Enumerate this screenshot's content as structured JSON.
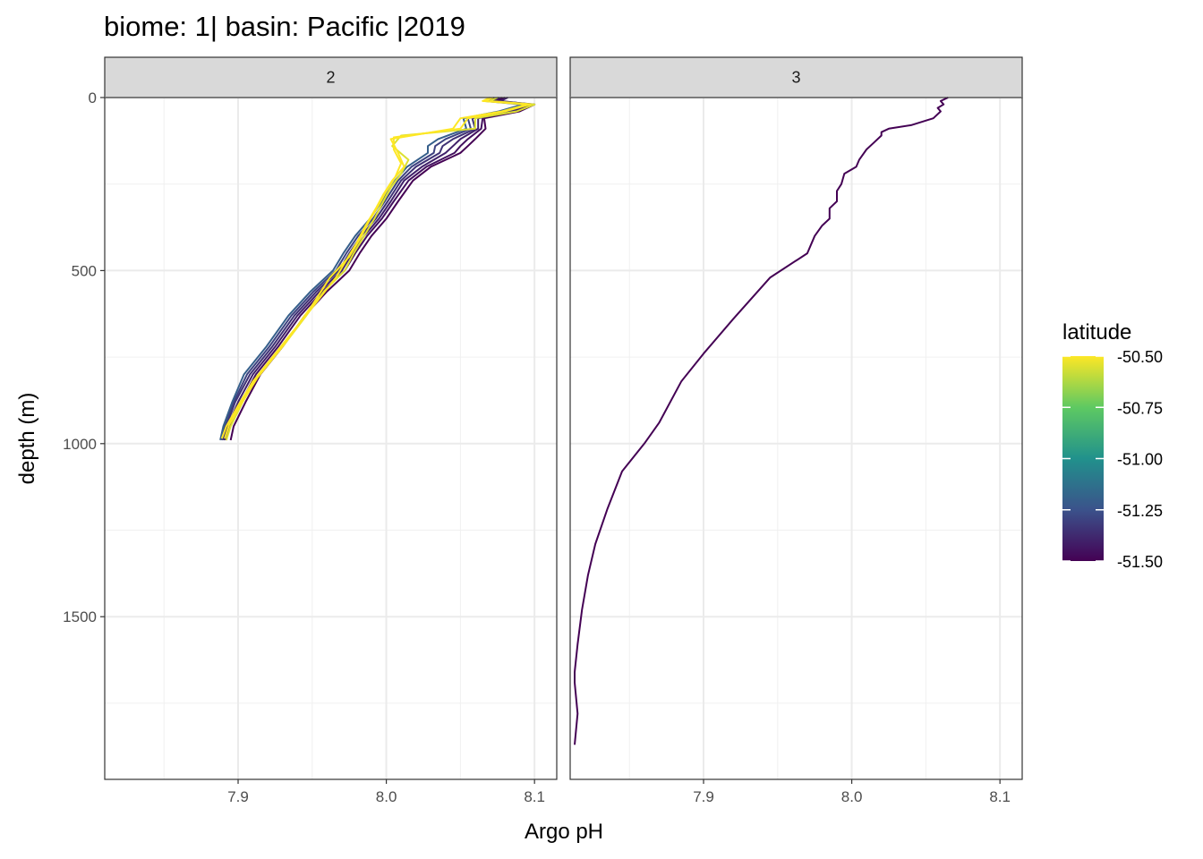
{
  "chart_data": {
    "type": "line",
    "title": "biome: 1| basin: Pacific |2019",
    "xlabel": "Argo pH",
    "ylabel": "depth (m)",
    "xlim": [
      7.81,
      8.115
    ],
    "ylim": [
      0,
      1970
    ],
    "y_reversed": true,
    "x_ticks": [
      7.9,
      8.0,
      8.1
    ],
    "x_tick_labels": [
      "7.9",
      "8.0",
      "8.1"
    ],
    "y_ticks": [
      0,
      500,
      1000,
      1500
    ],
    "y_tick_labels": [
      "0",
      "500",
      "1000",
      "1500"
    ],
    "grid": true,
    "legend": {
      "title": "latitude",
      "placement": "right",
      "type": "colorbar",
      "range": [
        -51.5,
        -50.5
      ],
      "ticks": [
        -50.5,
        -50.75,
        -51.0,
        -51.25,
        -51.5
      ],
      "tick_labels": [
        "-50.50",
        "-50.75",
        "-51.00",
        "-51.25",
        "-51.50"
      ],
      "colors": [
        "#fde725",
        "#5ec962",
        "#21918c",
        "#3b528b",
        "#440154"
      ]
    },
    "panels": [
      {
        "label": "2",
        "series": [
          {
            "latitude": -51.5,
            "x": [
              8.08,
              8.075,
              8.1,
              8.09,
              8.066,
              8.067,
              8.06,
              8.055,
              8.05,
              8.03,
              8.018,
              8.008,
              8.0,
              7.99,
              7.982,
              7.975,
              7.96,
              7.945,
              7.93,
              7.915,
              7.905,
              7.897,
              7.895
            ],
            "y": [
              0,
              10,
              20,
              40,
              60,
              90,
              120,
              140,
              160,
              200,
              240,
              300,
              350,
              400,
              450,
              500,
              560,
              630,
              720,
              800,
              880,
              950,
              990
            ]
          },
          {
            "latitude": -51.45,
            "x": [
              8.078,
              8.072,
              8.097,
              8.087,
              8.065,
              8.064,
              8.055,
              8.05,
              8.046,
              8.027,
              8.015,
              8.005,
              7.997,
              7.987,
              7.979,
              7.972,
              7.957,
              7.942,
              7.927,
              7.912,
              7.902,
              7.894,
              7.892
            ],
            "y": [
              0,
              10,
              20,
              40,
              60,
              90,
              120,
              140,
              160,
              200,
              240,
              300,
              350,
              400,
              450,
              500,
              560,
              630,
              720,
              800,
              880,
              950,
              990
            ]
          },
          {
            "latitude": -51.4,
            "x": [
              8.082,
              8.077,
              8.098,
              8.085,
              8.062,
              8.062,
              8.05,
              8.045,
              8.04,
              8.024,
              8.012,
              8.003,
              7.995,
              7.985,
              7.977,
              7.97,
              7.955,
              7.94,
              7.925,
              7.91,
              7.9,
              7.893,
              7.891
            ],
            "y": [
              0,
              10,
              20,
              40,
              60,
              90,
              120,
              140,
              160,
              200,
              240,
              300,
              350,
              400,
              450,
              500,
              560,
              630,
              720,
              800,
              880,
              950,
              990
            ]
          },
          {
            "latitude": -51.35,
            "x": [
              8.076,
              8.071,
              8.096,
              8.082,
              8.058,
              8.06,
              8.045,
              8.038,
              8.036,
              8.02,
              8.01,
              8.001,
              7.993,
              7.983,
              7.975,
              7.968,
              7.953,
              7.938,
              7.923,
              7.908,
              7.898,
              7.892,
              7.89
            ],
            "y": [
              0,
              10,
              20,
              40,
              60,
              90,
              120,
              140,
              160,
              200,
              240,
              300,
              350,
              400,
              450,
              500,
              560,
              630,
              720,
              800,
              880,
              950,
              990
            ]
          },
          {
            "latitude": -51.3,
            "x": [
              8.073,
              8.069,
              8.094,
              8.079,
              8.055,
              8.057,
              8.04,
              8.033,
              8.032,
              8.017,
              8.008,
              7.999,
              7.991,
              7.981,
              7.973,
              7.966,
              7.951,
              7.936,
              7.921,
              7.906,
              7.897,
              7.891,
              7.889
            ],
            "y": [
              0,
              10,
              20,
              40,
              60,
              90,
              120,
              140,
              160,
              200,
              240,
              300,
              350,
              400,
              450,
              500,
              560,
              630,
              720,
              800,
              880,
              950,
              990
            ]
          },
          {
            "latitude": -51.2,
            "x": [
              8.07,
              8.066,
              8.092,
              8.076,
              8.052,
              8.054,
              8.035,
              8.028,
              8.028,
              8.014,
              8.006,
              7.997,
              7.989,
              7.979,
              7.971,
              7.964,
              7.949,
              7.934,
              7.919,
              7.904,
              7.896,
              7.89,
              7.888
            ],
            "y": [
              0,
              10,
              20,
              40,
              60,
              90,
              120,
              140,
              160,
              200,
              240,
              300,
              350,
              400,
              450,
              500,
              560,
              630,
              720,
              800,
              880,
              950,
              990
            ]
          },
          {
            "latitude": -50.55,
            "x": [
              8.075,
              8.07,
              8.1,
              8.088,
              8.06,
              8.06,
              8.01,
              8.004,
              8.015,
              8.01,
              8.003,
              7.998,
              7.992,
              7.985,
              7.978,
              7.972,
              7.958,
              7.946,
              7.93,
              7.914,
              7.903,
              7.895,
              7.892
            ],
            "y": [
              0,
              10,
              20,
              40,
              60,
              90,
              110,
              140,
              180,
              220,
              260,
              300,
              350,
              400,
              450,
              500,
              560,
              630,
              720,
              800,
              880,
              950,
              990
            ]
          },
          {
            "latitude": -50.5,
            "x": [
              8.072,
              8.067,
              8.097,
              8.08,
              8.055,
              8.05,
              8.005,
              8.005,
              8.01,
              8.006,
              8.0,
              7.995,
              7.988,
              7.982,
              7.975,
              7.962,
              7.95,
              7.94,
              7.925,
              7.91,
              7.9,
              7.892,
              7.889
            ],
            "y": [
              0,
              10,
              20,
              40,
              60,
              90,
              115,
              150,
              190,
              230,
              270,
              310,
              360,
              410,
              460,
              520,
              600,
              660,
              740,
              820,
              890,
              950,
              985
            ]
          },
          {
            "latitude": -50.5,
            "x": [
              8.07,
              8.065,
              8.095,
              8.078,
              8.05,
              8.045,
              8.003,
              8.008,
              8.012,
              8.004,
              7.998,
              7.993,
              7.986,
              7.98,
              7.973,
              7.966,
              7.955,
              7.942,
              7.928,
              7.913,
              7.902,
              7.894,
              7.891
            ],
            "y": [
              0,
              10,
              20,
              40,
              60,
              90,
              120,
              160,
              200,
              240,
              280,
              320,
              370,
              420,
              470,
              520,
              580,
              650,
              730,
              810,
              885,
              945,
              985
            ]
          }
        ]
      },
      {
        "label": "3",
        "series": [
          {
            "latitude": -51.5,
            "x": [
              8.065,
              8.06,
              8.062,
              8.058,
              8.06,
              8.055,
              8.04,
              8.025,
              8.02,
              8.02,
              8.015,
              8.01,
              8.005,
              8.003,
              7.995,
              7.993,
              7.99,
              7.99,
              7.985,
              7.985,
              7.98,
              7.975,
              7.97,
              7.945,
              7.92,
              7.9,
              7.885,
              7.87,
              7.86,
              7.845,
              7.835,
              7.827,
              7.822,
              7.818,
              7.815,
              7.813,
              7.813,
              7.815,
              7.813
            ],
            "y": [
              0,
              10,
              20,
              30,
              40,
              60,
              80,
              90,
              100,
              110,
              130,
              150,
              180,
              200,
              220,
              250,
              270,
              300,
              320,
              350,
              370,
              400,
              450,
              520,
              640,
              740,
              820,
              940,
              1000,
              1080,
              1190,
              1290,
              1380,
              1480,
              1580,
              1660,
              1690,
              1780,
              1870
            ]
          }
        ]
      }
    ]
  }
}
